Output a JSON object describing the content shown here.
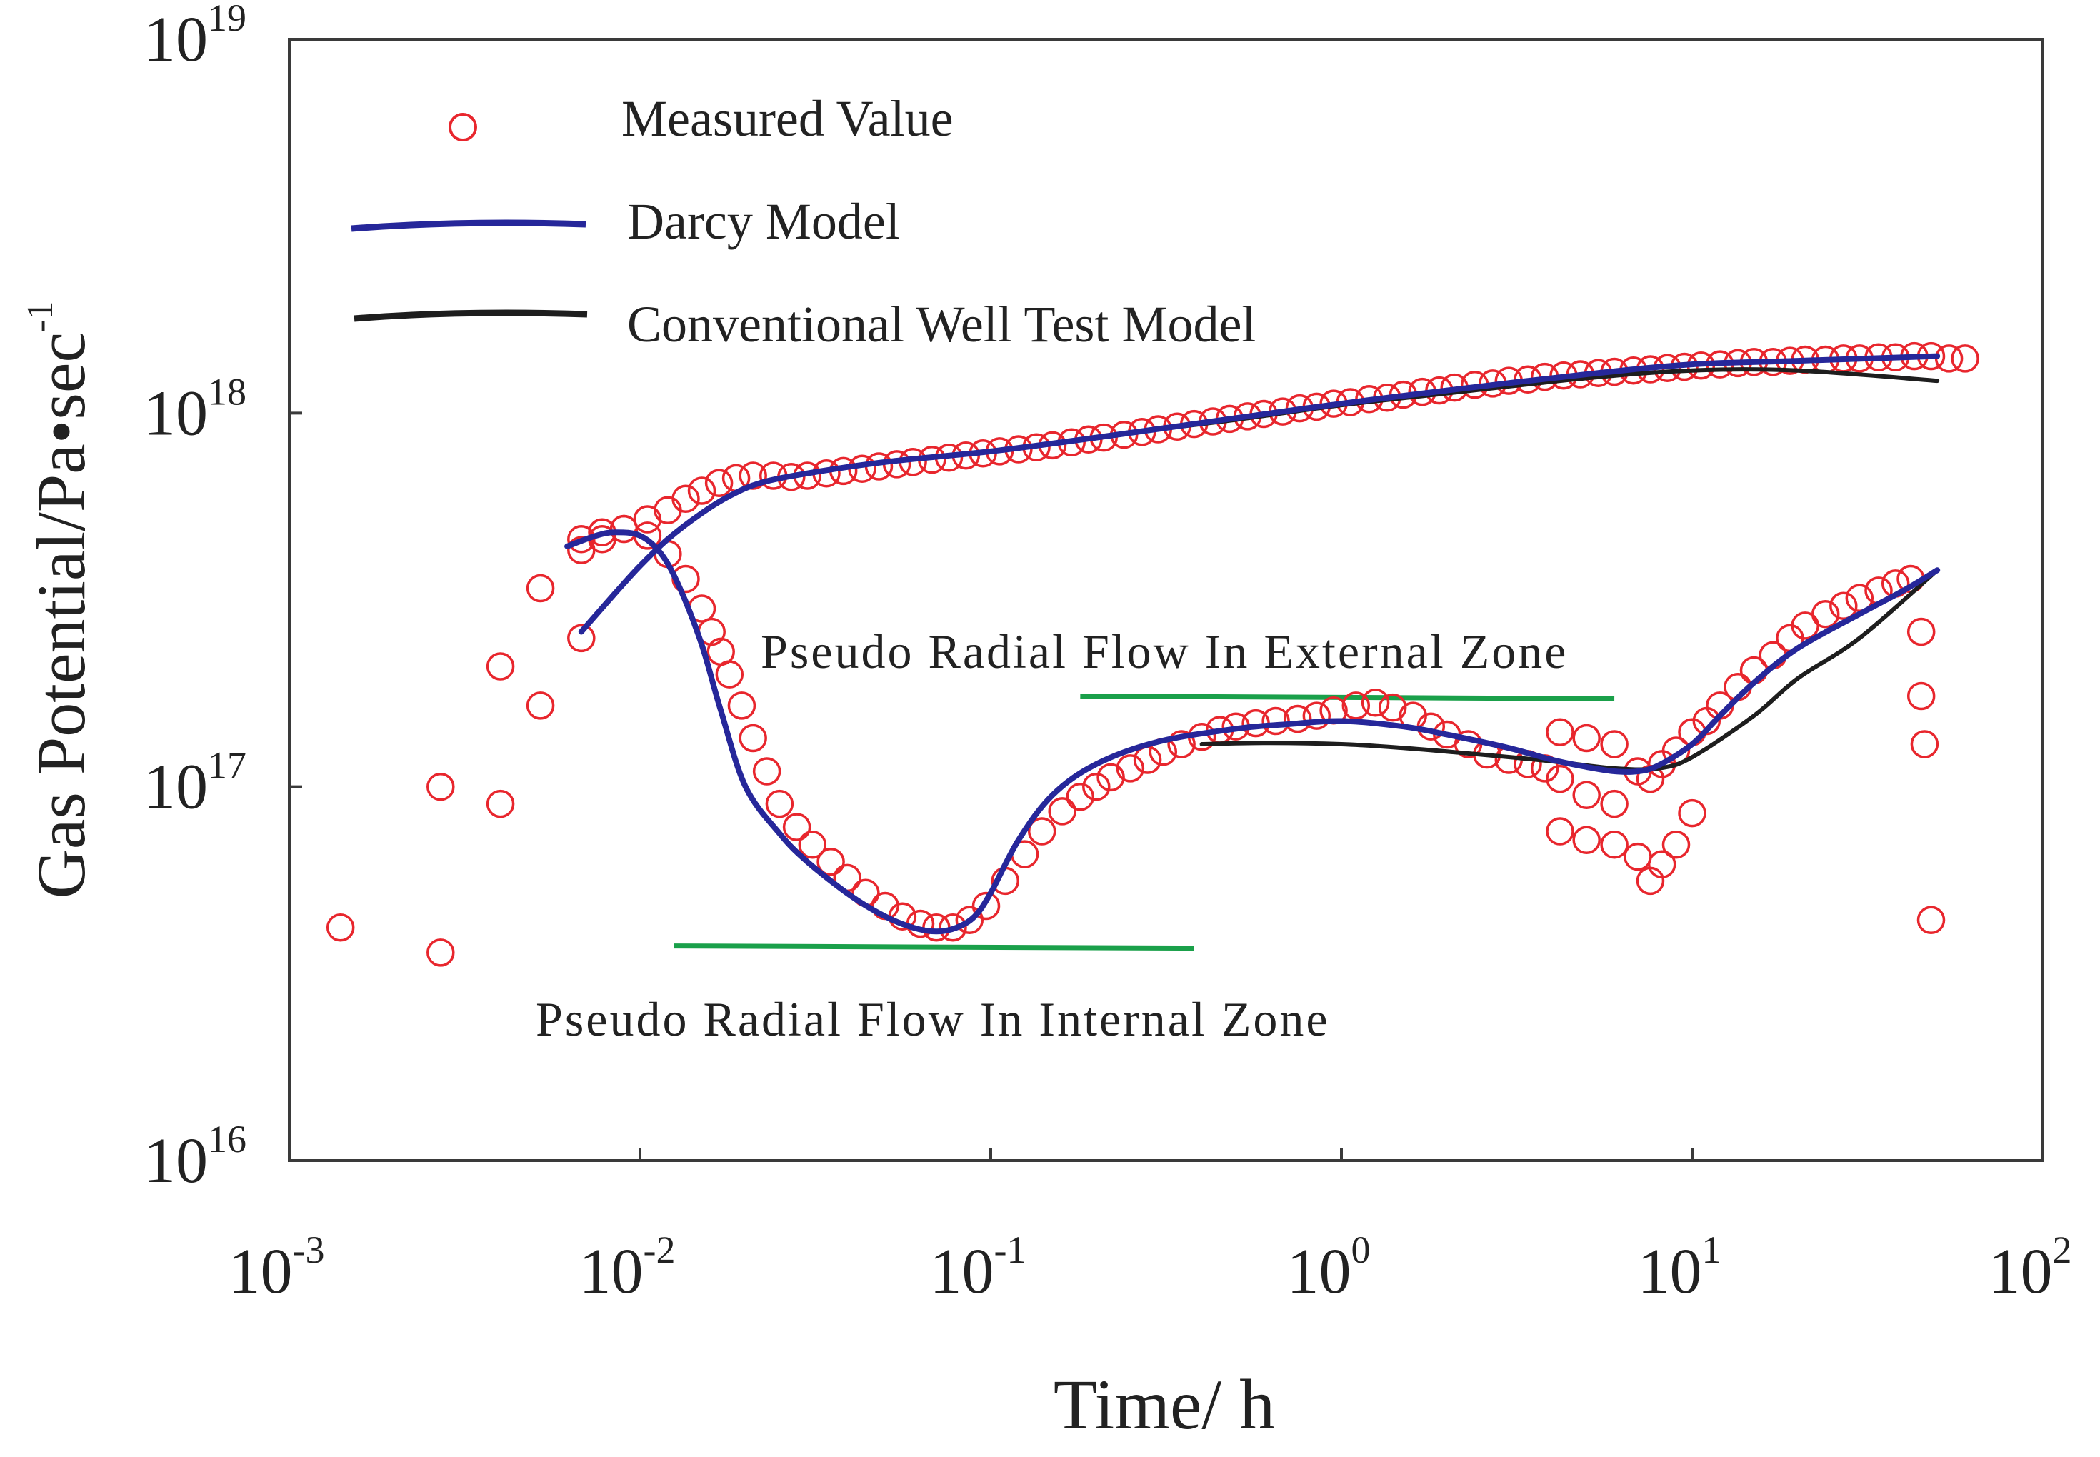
{
  "chart_data": {
    "type": "scatter",
    "title": "",
    "xlabel": "Time/ h",
    "ylabel": "Gas Potential/Pa•sec",
    "ylabel_superscript": "-1",
    "xscale": "log",
    "yscale": "log",
    "xlim": [
      0.001,
      100
    ],
    "ylim": [
      1e+16,
      1e+19
    ],
    "x_ticks": [
      {
        "base": "10",
        "exp": "-3",
        "value": 0.001
      },
      {
        "base": "10",
        "exp": "-2",
        "value": 0.01
      },
      {
        "base": "10",
        "exp": "-1",
        "value": 0.1
      },
      {
        "base": "10",
        "exp": "0",
        "value": 1
      },
      {
        "base": "10",
        "exp": "1",
        "value": 10
      },
      {
        "base": "10",
        "exp": "2",
        "value": 100
      }
    ],
    "y_ticks": [
      {
        "base": "10",
        "exp": "16",
        "value": 1e+16
      },
      {
        "base": "10",
        "exp": "17",
        "value": 1e+17
      },
      {
        "base": "10",
        "exp": "18",
        "value": 1e+18
      },
      {
        "base": "10",
        "exp": "19",
        "value": 1e+19
      }
    ],
    "grid": false,
    "legend_position": "top-left",
    "legend": [
      {
        "label": "Measured Value",
        "kind": "marker",
        "color": "#e8262d"
      },
      {
        "label": "Darcy Model",
        "kind": "line",
        "color": "#26279a"
      },
      {
        "label": "Conventional Well Test Model",
        "kind": "line",
        "color": "#1e1e1e"
      }
    ],
    "annotations": [
      {
        "text": "Pseudo Radial Flow In External Zone",
        "x": 1.0,
        "y": 2.5e+17
      },
      {
        "text": "Pseudo Radial Flow In Internal Zone",
        "x": 0.1,
        "y": 2.3e+16
      }
    ],
    "reference_lines": [
      {
        "name": "external-zone-line",
        "color": "#1aa04a",
        "x": [
          0.18,
          6.0
        ],
        "y": [
          1.75e+17,
          1.72e+17
        ]
      },
      {
        "name": "internal-zone-line",
        "color": "#1aa04a",
        "x": [
          0.0125,
          0.38
        ],
        "y": [
          3.75e+16,
          3.7e+16
        ]
      }
    ],
    "series": [
      {
        "name": "Measured Value (pressure)",
        "color": "#e8262d",
        "x": [
          0.0068,
          0.0078,
          0.009,
          0.0105,
          0.012,
          0.0135,
          0.015,
          0.0168,
          0.0188,
          0.021,
          0.024,
          0.027,
          0.03,
          0.034,
          0.038,
          0.043,
          0.048,
          0.054,
          0.06,
          0.068,
          0.076,
          0.085,
          0.095,
          0.106,
          0.12,
          0.135,
          0.15,
          0.17,
          0.19,
          0.21,
          0.24,
          0.27,
          0.3,
          0.34,
          0.38,
          0.43,
          0.48,
          0.54,
          0.6,
          0.68,
          0.76,
          0.85,
          0.95,
          1.06,
          1.2,
          1.35,
          1.5,
          1.7,
          1.9,
          2.1,
          2.4,
          2.7,
          3.0,
          3.4,
          3.8,
          4.3,
          4.8,
          5.4,
          6.0,
          6.8,
          7.6,
          8.5,
          9.5,
          10.6,
          12,
          13.5,
          15,
          17,
          19,
          21,
          24,
          27,
          30,
          34,
          38,
          43,
          48,
          54,
          60
        ],
        "values": [
          4.6e+17,
          4.8e+17,
          4.9e+17,
          5.2e+17,
          5.5e+17,
          5.9e+17,
          6.2e+17,
          6.5e+17,
          6.7e+17,
          6.8e+17,
          6.8e+17,
          6.75e+17,
          6.8e+17,
          6.9e+17,
          7e+17,
          7.1e+17,
          7.2e+17,
          7.3e+17,
          7.4e+17,
          7.5e+17,
          7.6e+17,
          7.7e+17,
          7.8e+17,
          7.9e+17,
          8e+17,
          8.1e+17,
          8.2e+17,
          8.35e+17,
          8.5e+17,
          8.6e+17,
          8.75e+17,
          8.9e+17,
          9.05e+17,
          9.2e+17,
          9.35e+17,
          9.5e+17,
          9.65e+17,
          9.8e+17,
          9.95e+17,
          1.01e+18,
          1.03e+18,
          1.04e+18,
          1.06e+18,
          1.07e+18,
          1.09e+18,
          1.1e+18,
          1.12e+18,
          1.14e+18,
          1.15e+18,
          1.17e+18,
          1.19e+18,
          1.2e+18,
          1.22e+18,
          1.23e+18,
          1.25e+18,
          1.26e+18,
          1.27e+18,
          1.28e+18,
          1.29e+18,
          1.3e+18,
          1.31e+18,
          1.32e+18,
          1.33e+18,
          1.34e+18,
          1.35e+18,
          1.36e+18,
          1.37e+18,
          1.37e+18,
          1.38e+18,
          1.39e+18,
          1.39e+18,
          1.4e+18,
          1.4e+18,
          1.41e+18,
          1.41e+18,
          1.42e+18,
          1.42e+18,
          1.4e+18,
          1.4e+18
        ]
      },
      {
        "name": "Measured Value (derivative)",
        "color": "#e8262d",
        "x": [
          0.0014,
          0.0027,
          0.0027,
          0.004,
          0.004,
          0.0052,
          0.0052,
          0.0068,
          0.0068,
          0.0078,
          0.009,
          0.0105,
          0.012,
          0.0135,
          0.015,
          0.016,
          0.017,
          0.018,
          0.0195,
          0.021,
          0.023,
          0.025,
          0.028,
          0.031,
          0.035,
          0.039,
          0.044,
          0.05,
          0.056,
          0.063,
          0.07,
          0.078,
          0.087,
          0.097,
          0.11,
          0.125,
          0.14,
          0.16,
          0.18,
          0.2,
          0.22,
          0.25,
          0.28,
          0.31,
          0.35,
          0.4,
          0.45,
          0.5,
          0.57,
          0.65,
          0.75,
          0.85,
          0.95,
          1.1,
          1.25,
          1.4,
          1.6,
          1.8,
          2.0,
          2.3,
          2.6,
          3.0,
          3.4,
          3.8,
          4.2,
          4.2,
          4.2,
          5.0,
          5.0,
          5.0,
          6.0,
          6.0,
          6.0,
          7.0,
          7.0,
          7.6,
          7.6,
          8.2,
          8.2,
          9.0,
          9.0,
          10,
          10,
          11,
          12,
          13.5,
          15,
          17,
          19,
          21,
          24,
          27,
          30,
          34,
          38,
          42,
          45,
          45,
          46,
          48
        ],
        "values": [
          4.2e+16,
          3.6e+16,
          1e+17,
          9e+16,
          2.1e+17,
          1.65e+17,
          3.4e+17,
          2.5e+17,
          4.3e+17,
          4.6e+17,
          4.9e+17,
          4.7e+17,
          4.2e+17,
          3.6e+17,
          3e+17,
          2.6e+17,
          2.3e+17,
          2e+17,
          1.65e+17,
          1.35e+17,
          1.1e+17,
          9e+16,
          7.8e+16,
          7e+16,
          6.3e+16,
          5.7e+16,
          5.2e+16,
          4.8e+16,
          4.5e+16,
          4.3e+16,
          4.2e+16,
          4.2e+16,
          4.4e+16,
          4.8e+16,
          5.6e+16,
          6.6e+16,
          7.6e+16,
          8.6e+16,
          9.4e+16,
          1e+17,
          1.06e+17,
          1.12e+17,
          1.18e+17,
          1.24e+17,
          1.3e+17,
          1.36e+17,
          1.42e+17,
          1.45e+17,
          1.48e+17,
          1.5e+17,
          1.52e+17,
          1.55e+17,
          1.6e+17,
          1.65e+17,
          1.68e+17,
          1.63e+17,
          1.55e+17,
          1.45e+17,
          1.38e+17,
          1.3e+17,
          1.22e+17,
          1.18e+17,
          1.15e+17,
          1.12e+17,
          1.4e+17,
          1.05e+17,
          7.6e+16,
          1.35e+17,
          9.5e+16,
          7.2e+16,
          1.3e+17,
          9e+16,
          7e+16,
          1.1e+17,
          6.5e+16,
          1.05e+17,
          5.6e+16,
          1.15e+17,
          6.2e+16,
          1.25e+17,
          7e+16,
          1.4e+17,
          8.5e+16,
          1.5e+17,
          1.65e+17,
          1.85e+17,
          2.05e+17,
          2.25e+17,
          2.5e+17,
          2.7e+17,
          2.9e+17,
          3.05e+17,
          3.2e+17,
          3.35e+17,
          3.5e+17,
          3.6e+17,
          2.6e+17,
          1.75e+17,
          1.3e+17,
          4.4e+16
        ]
      },
      {
        "name": "Darcy Model (pressure)",
        "color": "#26279a",
        "x": [
          0.0068,
          0.0085,
          0.01,
          0.012,
          0.015,
          0.018,
          0.022,
          0.03,
          0.05,
          0.1,
          0.2,
          0.5,
          1,
          2,
          5,
          10,
          20,
          50
        ],
        "values": [
          2.6e+17,
          3.3e+17,
          3.9e+17,
          4.6e+17,
          5.4e+17,
          6e+17,
          6.5e+17,
          6.9e+17,
          7.4e+17,
          7.9e+17,
          8.6e+17,
          9.7e+17,
          1.06e+18,
          1.15e+18,
          1.27e+18,
          1.35e+18,
          1.38e+18,
          1.42e+18
        ]
      },
      {
        "name": "Darcy Model (derivative)",
        "color": "#26279a",
        "x": [
          0.0062,
          0.0075,
          0.0085,
          0.01,
          0.0115,
          0.013,
          0.015,
          0.017,
          0.02,
          0.025,
          0.03,
          0.04,
          0.05,
          0.06,
          0.07,
          0.08,
          0.09,
          0.1,
          0.12,
          0.15,
          0.2,
          0.3,
          0.5,
          0.7,
          1.0,
          1.5,
          2.0,
          3.0,
          4.0,
          5.0,
          6.0,
          7.0,
          8.0,
          10,
          12,
          15,
          20,
          30,
          40,
          50
        ],
        "values": [
          4.4e+17,
          4.7e+17,
          4.8e+17,
          4.7e+17,
          4.2e+17,
          3.4e+17,
          2.4e+17,
          1.6e+17,
          1e+17,
          7.5e+16,
          6.3e+16,
          5.1e+16,
          4.5e+16,
          4.2e+16,
          4.1e+16,
          4.2e+16,
          4.5e+16,
          5.2e+16,
          7.2e+16,
          9.5e+16,
          1.15e+17,
          1.32e+17,
          1.43e+17,
          1.47e+17,
          1.5e+17,
          1.45e+17,
          1.38e+17,
          1.27e+17,
          1.18e+17,
          1.13e+17,
          1.1e+17,
          1.1e+17,
          1.14e+17,
          1.3e+17,
          1.55e+17,
          1.9e+17,
          2.35e+17,
          2.9e+17,
          3.35e+17,
          3.8e+17
        ]
      },
      {
        "name": "Conventional Well Test Model (pressure)",
        "color": "#1e1e1e",
        "x": [
          0.3,
          0.5,
          1,
          2,
          5,
          10,
          20,
          50
        ],
        "values": [
          9.05e+17,
          9.6e+17,
          1.05e+18,
          1.13e+18,
          1.24e+18,
          1.3e+18,
          1.3e+18,
          1.22e+18
        ]
      },
      {
        "name": "Conventional Well Test Model (derivative)",
        "color": "#1e1e1e",
        "x": [
          0.4,
          0.6,
          1.0,
          1.5,
          2.5,
          4.0,
          6.0,
          8.0,
          10,
          15,
          20,
          30,
          50
        ],
        "values": [
          1.3e+17,
          1.31e+17,
          1.3e+17,
          1.27e+17,
          1.22e+17,
          1.17e+17,
          1.12e+17,
          1.12e+17,
          1.2e+17,
          1.55e+17,
          1.95e+17,
          2.5e+17,
          3.8e+17
        ]
      }
    ]
  }
}
